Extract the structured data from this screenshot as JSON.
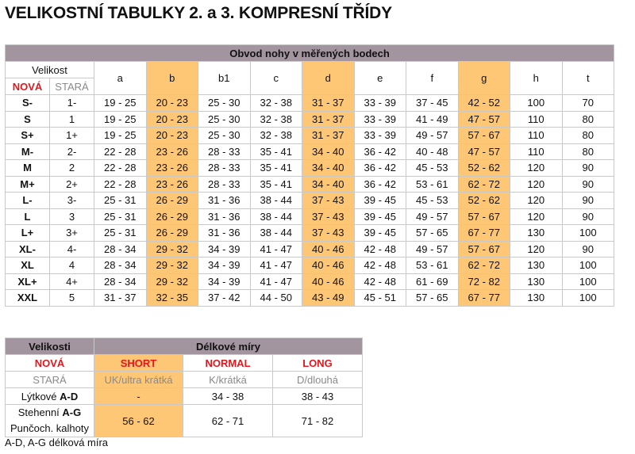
{
  "title": "VELIKOSTNÍ TABULKY 2. a 3. KOMPRESNÍ TŘÍDY",
  "colors": {
    "header_bg": "#a2959f",
    "highlight": "#fdc775",
    "red": "#e8141b",
    "gray": "#8a8a8a"
  },
  "table1": {
    "caption": "Obvod nohy v měřených bodech",
    "size_label": "Velikost",
    "new_label": "NOVÁ",
    "old_label": "STARÁ",
    "columns": [
      "a",
      "b",
      "b1",
      "c",
      "d",
      "e",
      "f",
      "g",
      "h",
      "t"
    ],
    "highlighted_columns": [
      "b",
      "d",
      "g"
    ],
    "rows": [
      {
        "new": "S-",
        "old": "1-",
        "values": [
          "19 - 25",
          "20 - 23",
          "25 - 30",
          "32 - 38",
          "31 - 37",
          "33 - 39",
          "37 - 45",
          "42 - 52",
          "100",
          "70"
        ]
      },
      {
        "new": "S",
        "old": "1",
        "values": [
          "19 - 25",
          "20 - 23",
          "25 - 30",
          "32 - 38",
          "31 - 37",
          "33 - 39",
          "41 - 49",
          "47 - 57",
          "110",
          "80"
        ]
      },
      {
        "new": "S+",
        "old": "1+",
        "values": [
          "19 - 25",
          "20 - 23",
          "25 - 30",
          "32 - 38",
          "31 - 37",
          "33 - 39",
          "49 - 57",
          "57 - 67",
          "110",
          "80"
        ]
      },
      {
        "new": "M-",
        "old": "2-",
        "values": [
          "22 - 28",
          "23 - 26",
          "28 - 33",
          "35 - 41",
          "34 - 40",
          "36 - 42",
          "40 - 48",
          "47 - 57",
          "110",
          "80"
        ]
      },
      {
        "new": "M",
        "old": "2",
        "values": [
          "22 - 28",
          "23 - 26",
          "28 - 33",
          "35 - 41",
          "34 - 40",
          "36 - 42",
          "45 - 53",
          "52 - 62",
          "120",
          "90"
        ]
      },
      {
        "new": "M+",
        "old": "2+",
        "values": [
          "22 - 28",
          "23 - 26",
          "28 - 33",
          "35 - 41",
          "34 - 40",
          "36 - 42",
          "53 - 61",
          "62 - 72",
          "120",
          "90"
        ]
      },
      {
        "new": "L-",
        "old": "3-",
        "values": [
          "25 - 31",
          "26 - 29",
          "31 - 36",
          "38 - 44",
          "37 - 43",
          "39 - 45",
          "45 - 53",
          "52 - 62",
          "120",
          "90"
        ]
      },
      {
        "new": "L",
        "old": "3",
        "values": [
          "25 - 31",
          "26 - 29",
          "31 - 36",
          "38 - 44",
          "37 - 43",
          "39 - 45",
          "49 - 57",
          "57 - 67",
          "120",
          "90"
        ]
      },
      {
        "new": "L+",
        "old": "3+",
        "values": [
          "25 - 31",
          "26 - 29",
          "31 - 36",
          "38 - 44",
          "37 - 43",
          "39 - 45",
          "57 - 65",
          "67 - 77",
          "130",
          "100"
        ]
      },
      {
        "new": "XL-",
        "old": "4-",
        "values": [
          "28 - 34",
          "29 - 32",
          "34 - 39",
          "41 - 47",
          "40 - 46",
          "42 - 48",
          "49 - 57",
          "57 - 67",
          "120",
          "90"
        ]
      },
      {
        "new": "XL",
        "old": "4",
        "values": [
          "28 - 34",
          "29 - 32",
          "34 - 39",
          "41 - 47",
          "40 - 46",
          "42 - 48",
          "53 - 61",
          "62 - 72",
          "130",
          "100"
        ]
      },
      {
        "new": "XL+",
        "old": "4+",
        "values": [
          "28 - 34",
          "29 - 32",
          "34 - 39",
          "41 - 47",
          "40 - 46",
          "42 - 48",
          "61 - 69",
          "72 - 82",
          "130",
          "100"
        ]
      },
      {
        "new": "XXL",
        "old": "5",
        "values": [
          "31 - 37",
          "32 - 35",
          "37 - 42",
          "44 - 50",
          "43 - 49",
          "45 - 51",
          "57 - 65",
          "67 - 77",
          "130",
          "100"
        ]
      }
    ]
  },
  "table2": {
    "sizes_label": "Velikosti",
    "caption": "Délkové míry",
    "new_label": "NOVÁ",
    "old_label": "STARÁ",
    "new_sizes": [
      "SHORT",
      "NORMAL",
      "LONG"
    ],
    "old_sizes": [
      "UK/ultra krátká",
      "K/krátká",
      "D/dlouhá"
    ],
    "calf": {
      "label": "Lýtkové ",
      "bold": "A-D",
      "values": [
        "-",
        "34 - 38",
        "38 - 43"
      ]
    },
    "thigh": {
      "label": "Stehenní ",
      "bold": "A-G",
      "label2": "Punčoch. kalhoty",
      "values": [
        "56 - 62",
        "62 - 71",
        "71 - 82"
      ]
    }
  },
  "footnote": "A-D, A-G délková míra"
}
